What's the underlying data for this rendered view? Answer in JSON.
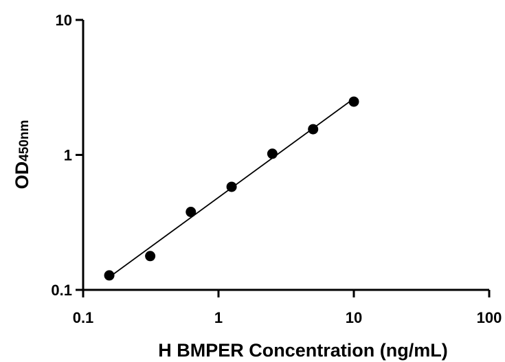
{
  "chart_data": {
    "type": "scatter",
    "x_scale": "log",
    "y_scale": "log",
    "xlim": [
      0.1,
      100
    ],
    "ylim": [
      0.1,
      10
    ],
    "xlabel": "H BMPER Concentration (ng/mL)",
    "ylabel": {
      "main": "OD",
      "subscript": "450nm"
    },
    "x_ticks": [
      "0.1",
      "1",
      "10",
      "100"
    ],
    "y_ticks": [
      "0.1",
      "1",
      "10"
    ],
    "grid": false,
    "series": [
      {
        "x": [
          0.156,
          0.313,
          0.625,
          1.25,
          2.5,
          5,
          10
        ],
        "y": [
          0.128,
          0.178,
          0.378,
          0.58,
          1.02,
          1.55,
          2.48
        ],
        "color": "#000000",
        "marker": "circle",
        "fit_line": true
      }
    ]
  }
}
